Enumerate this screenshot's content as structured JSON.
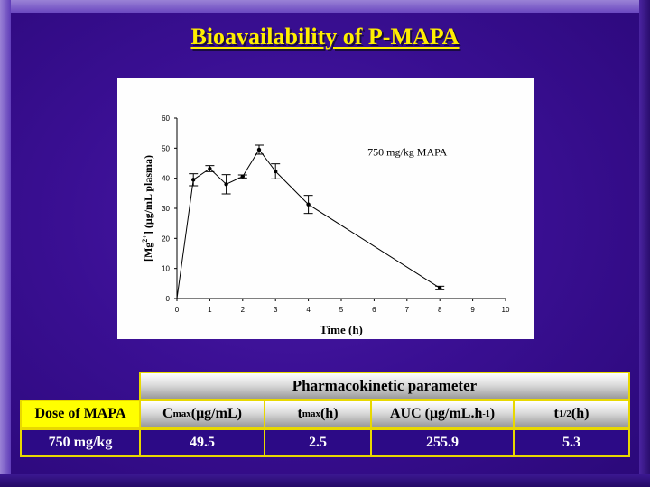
{
  "slide": {
    "title": "Bioavailability of P-MAPA"
  },
  "chart_data": {
    "type": "line",
    "xlabel": "Time (h)",
    "ylabel_parts": [
      "[Mg",
      "2+",
      "] (",
      "μ",
      "g/mL plasma)"
    ],
    "annotation": "750 mg/kg MAPA",
    "xlim": [
      0,
      10
    ],
    "ylim": [
      0,
      60
    ],
    "x_ticks": [
      "0",
      "1",
      "2",
      "3",
      "4",
      "5",
      "6",
      "7",
      "8",
      "9",
      "10"
    ],
    "y_ticks": [
      "0",
      "10",
      "20",
      "30",
      "40",
      "50",
      "60"
    ],
    "series": [
      {
        "x": [
          0,
          0.5,
          1.0,
          1.5,
          2.0,
          2.5,
          3.0,
          4.0,
          8.0
        ],
        "y": [
          0,
          39.5,
          43.2,
          38.0,
          40.6,
          49.5,
          42.3,
          31.3,
          3.5
        ],
        "err": [
          0,
          2.0,
          1.0,
          3.2,
          0.5,
          1.5,
          2.5,
          3.0,
          0.6
        ]
      }
    ]
  },
  "table": {
    "group_header": "Pharmacokinetic parameter",
    "dose_header": "Dose of MAPA",
    "columns": [
      {
        "main": "C",
        "sub": "max",
        "rest": " (μg/mL)",
        "sup": "",
        "tail": ""
      },
      {
        "main": "t",
        "sub": "max",
        "rest": " (h)",
        "sup": "",
        "tail": ""
      },
      {
        "main": "AUC (μg/mL.h",
        "sub": "",
        "rest": "",
        "sup": "-1",
        "tail": ")"
      },
      {
        "main": "t",
        "sub": "1/2",
        "rest": " (h)",
        "sup": "",
        "tail": ""
      }
    ],
    "row": {
      "dose": "750 mg/kg",
      "cmax": "49.5",
      "tmax": "2.5",
      "auc": "255.9",
      "thalf": "5.3"
    }
  }
}
